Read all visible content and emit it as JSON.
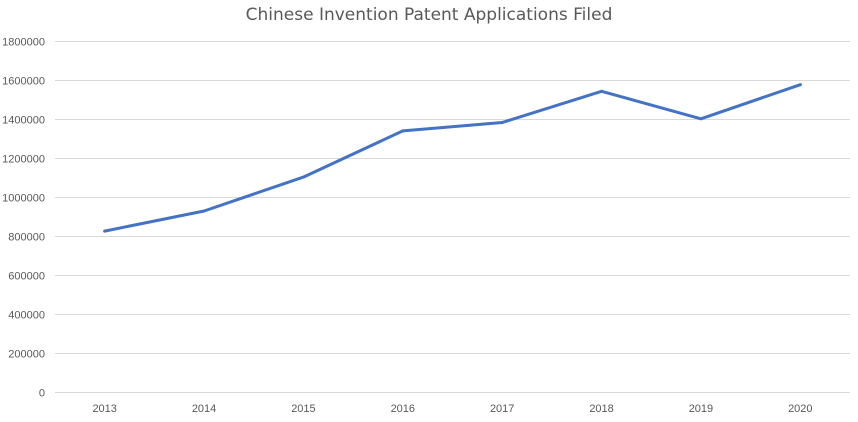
{
  "chart_data": {
    "type": "line",
    "title": "Chinese Invention Patent Applications Filed",
    "xlabel": "",
    "ylabel": "",
    "categories": [
      "2013",
      "2014",
      "2015",
      "2016",
      "2017",
      "2018",
      "2019",
      "2020"
    ],
    "series": [
      {
        "values": [
          825000,
          928000,
          1102000,
          1339000,
          1382000,
          1542000,
          1401000,
          1576000
        ]
      }
    ],
    "ylim": [
      0,
      1800000
    ],
    "yticks": [
      "0",
      "200000",
      "400000",
      "600000",
      "800000",
      "1000000",
      "1200000",
      "1400000",
      "1600000",
      "1800000"
    ],
    "grid": true,
    "legend": "none",
    "colors": {
      "line": "#4472C4",
      "grid": "#D9D9D9",
      "text": "#595959"
    }
  }
}
